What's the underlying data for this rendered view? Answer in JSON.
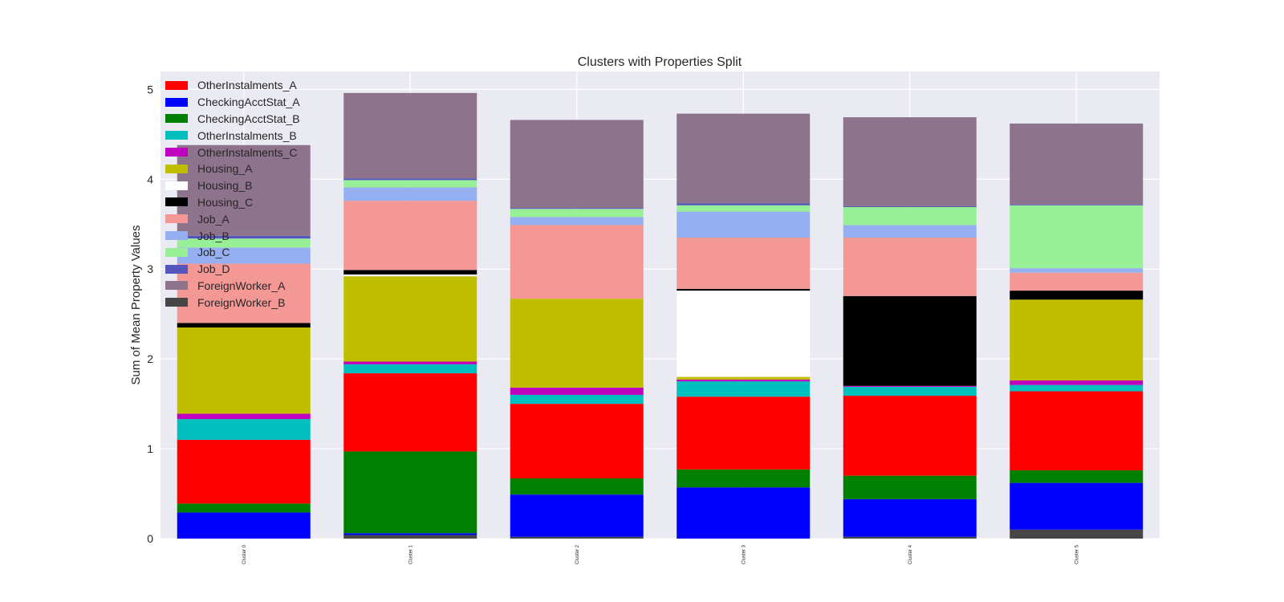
{
  "chart_data": {
    "type": "bar",
    "stacked": true,
    "title": "Clusters with Properties Split",
    "xlabel": "",
    "ylabel": "Sum of Mean Property Values",
    "ylim": [
      0,
      5.2
    ],
    "yticks": [
      0,
      1,
      2,
      3,
      4,
      5
    ],
    "grid": true,
    "legend_position": "top-left",
    "categories": [
      "Cluster 0",
      "Cluster 1",
      "Cluster 2",
      "Cluster 3",
      "Cluster 4",
      "Cluster 5"
    ],
    "series": [
      {
        "name": "ForeignWorker_B",
        "color": "#464646",
        "values": [
          0.0,
          0.04,
          0.02,
          0.0,
          0.02,
          0.1
        ]
      },
      {
        "name": "CheckingAcctStat_A",
        "color": "#0000ff",
        "values": [
          0.29,
          0.02,
          0.47,
          0.57,
          0.42,
          0.52
        ]
      },
      {
        "name": "CheckingAcctStat_B",
        "color": "#008000",
        "values": [
          0.1,
          0.91,
          0.18,
          0.2,
          0.26,
          0.14
        ]
      },
      {
        "name": "OtherInstalments_A",
        "color": "#ff0000",
        "values": [
          0.71,
          0.87,
          0.83,
          0.81,
          0.89,
          0.88
        ]
      },
      {
        "name": "OtherInstalments_B",
        "color": "#00bfbf",
        "values": [
          0.23,
          0.1,
          0.1,
          0.17,
          0.1,
          0.07
        ]
      },
      {
        "name": "OtherInstalments_C",
        "color": "#bf00bf",
        "values": [
          0.06,
          0.03,
          0.08,
          0.02,
          0.01,
          0.05
        ]
      },
      {
        "name": "Housing_A",
        "color": "#bfbf00",
        "values": [
          0.96,
          0.95,
          0.99,
          0.03,
          0.0,
          0.9
        ]
      },
      {
        "name": "Housing_B",
        "color": "#ffffff",
        "values": [
          0.0,
          0.02,
          0.0,
          0.96,
          0.0,
          0.0
        ]
      },
      {
        "name": "Housing_C",
        "color": "#000000",
        "values": [
          0.05,
          0.05,
          0.0,
          0.02,
          1.0,
          0.1
        ]
      },
      {
        "name": "Job_A",
        "color": "#f49896",
        "values": [
          0.66,
          0.77,
          0.82,
          0.57,
          0.65,
          0.2
        ]
      },
      {
        "name": "Job_B",
        "color": "#96aff0",
        "values": [
          0.18,
          0.15,
          0.09,
          0.29,
          0.14,
          0.05
        ]
      },
      {
        "name": "Job_C",
        "color": "#98f096",
        "values": [
          0.1,
          0.08,
          0.09,
          0.07,
          0.2,
          0.7
        ]
      },
      {
        "name": "Job_D",
        "color": "#5656bf",
        "values": [
          0.03,
          0.02,
          0.01,
          0.02,
          0.01,
          0.01
        ]
      },
      {
        "name": "ForeignWorker_A",
        "color": "#8e738c",
        "values": [
          1.01,
          0.95,
          0.98,
          1.0,
          0.99,
          0.9
        ]
      }
    ],
    "legend_order": [
      "OtherInstalments_A",
      "CheckingAcctStat_A",
      "CheckingAcctStat_B",
      "OtherInstalments_B",
      "OtherInstalments_C",
      "Housing_A",
      "Housing_B",
      "Housing_C",
      "Job_A",
      "Job_B",
      "Job_C",
      "Job_D",
      "ForeignWorker_A",
      "ForeignWorker_B"
    ],
    "style": {
      "plot_background": "#eaeaf2",
      "grid_color": "#ffffff",
      "text_color": "#262626"
    }
  }
}
